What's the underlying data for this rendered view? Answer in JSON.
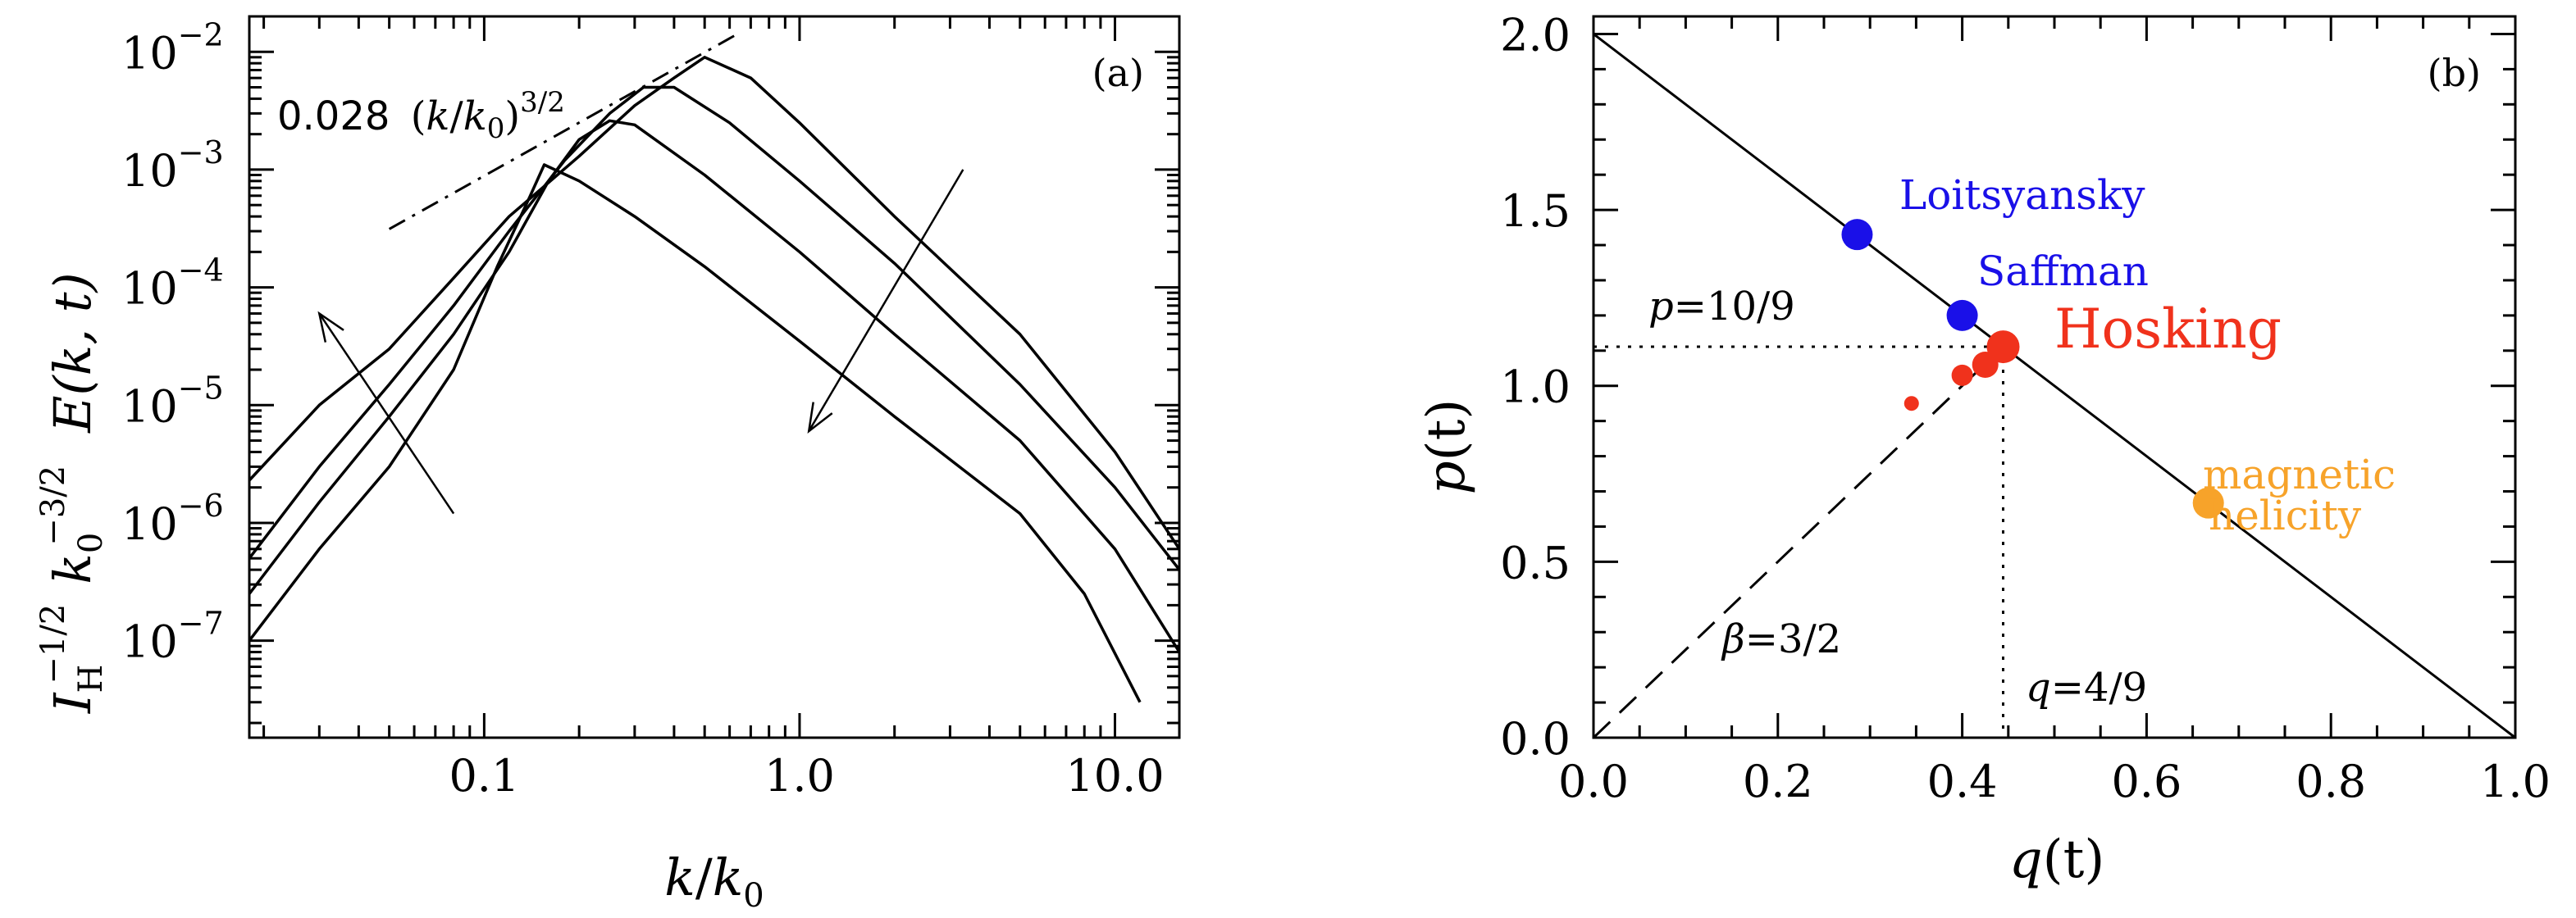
{
  "chart_data": [
    {
      "type": "line",
      "panel_label": "(a)",
      "x_scale": "log",
      "y_scale": "log",
      "xlim": [
        0.018,
        16
      ],
      "ylim": [
        1.5e-08,
        0.02
      ],
      "xlabel": "k/k0",
      "ylabel": "I_H^{-1/2} k_0^{-3/2} E(k,t)",
      "ylabel_parts": {
        "i": "I",
        "i_sub": "H",
        "i_sup": "−1/2",
        "k": "k",
        "k_sub": "0",
        "k_sup": "−3/2",
        "e": "E(k, t)"
      },
      "xlabel_parts": {
        "k": "k",
        "slash": "/",
        "k0": "k",
        "k0_sub": "0"
      },
      "x_ticks": [
        {
          "value": 0.1,
          "label": "0.1"
        },
        {
          "value": 1.0,
          "label": "1.0"
        },
        {
          "value": 10.0,
          "label": "10.0"
        }
      ],
      "y_ticks": [
        {
          "value": 1e-07,
          "mantissa": "10",
          "exp": "−7"
        },
        {
          "value": 1e-06,
          "mantissa": "10",
          "exp": "−6"
        },
        {
          "value": 1e-05,
          "mantissa": "10",
          "exp": "−5"
        },
        {
          "value": 0.0001,
          "mantissa": "10",
          "exp": "−4"
        },
        {
          "value": 0.001,
          "mantissa": "10",
          "exp": "−3"
        },
        {
          "value": 0.01,
          "mantissa": "10",
          "exp": "−2"
        }
      ],
      "series": [
        {
          "values": [
            [
              0.018,
              1e-07
            ],
            [
              0.03,
              6e-07
            ],
            [
              0.05,
              3e-06
            ],
            [
              0.08,
              2e-05
            ],
            [
              0.11,
              0.00015
            ],
            [
              0.14,
              0.0006
            ],
            [
              0.155,
              0.0011
            ],
            [
              0.2,
              0.0008
            ],
            [
              0.3,
              0.0004
            ],
            [
              0.5,
              0.00015
            ],
            [
              1.0,
              3.5e-05
            ],
            [
              2.0,
              8e-06
            ],
            [
              5.0,
              1.2e-06
            ],
            [
              8.0,
              2.5e-07
            ],
            [
              12.0,
              3e-08
            ]
          ]
        },
        {
          "values": [
            [
              0.018,
              2.5e-07
            ],
            [
              0.03,
              1.5e-06
            ],
            [
              0.05,
              8e-06
            ],
            [
              0.08,
              4e-05
            ],
            [
              0.12,
              0.0002
            ],
            [
              0.16,
              0.0008
            ],
            [
              0.2,
              0.0018
            ],
            [
              0.25,
              0.0026
            ],
            [
              0.3,
              0.0024
            ],
            [
              0.5,
              0.0009
            ],
            [
              1.0,
              0.0002
            ],
            [
              2.0,
              4e-05
            ],
            [
              5.0,
              5e-06
            ],
            [
              10.0,
              6e-07
            ],
            [
              16.0,
              8e-08
            ]
          ]
        },
        {
          "values": [
            [
              0.018,
              5e-07
            ],
            [
              0.03,
              3e-06
            ],
            [
              0.05,
              1.5e-05
            ],
            [
              0.08,
              7e-05
            ],
            [
              0.12,
              0.0003
            ],
            [
              0.18,
              0.0012
            ],
            [
              0.25,
              0.003
            ],
            [
              0.32,
              0.005
            ],
            [
              0.4,
              0.005
            ],
            [
              0.6,
              0.0025
            ],
            [
              1.0,
              0.0008
            ],
            [
              2.0,
              0.00016
            ],
            [
              5.0,
              1.5e-05
            ],
            [
              10.0,
              2e-06
            ],
            [
              16.0,
              4e-07
            ]
          ]
        },
        {
          "values": [
            [
              0.018,
              2.3e-06
            ],
            [
              0.03,
              1e-05
            ],
            [
              0.05,
              3e-05
            ],
            [
              0.08,
              0.00012
            ],
            [
              0.12,
              0.0004
            ],
            [
              0.2,
              0.0013
            ],
            [
              0.3,
              0.0035
            ],
            [
              0.4,
              0.006
            ],
            [
              0.5,
              0.009
            ],
            [
              0.7,
              0.006
            ],
            [
              1.0,
              0.0025
            ],
            [
              2.0,
              0.0004
            ],
            [
              5.0,
              4e-05
            ],
            [
              10.0,
              4e-06
            ],
            [
              16.0,
              6e-07
            ]
          ]
        }
      ],
      "fit_line": {
        "label": "0.028 (k/k0)^{3/2}",
        "label_parts": {
          "coef": "0.028",
          "k": "k",
          "k0": "k",
          "k0_sub": "0",
          "exp": "3/2"
        },
        "coefficient": 0.028,
        "exponent": 1.5,
        "x_range": [
          0.05,
          0.65
        ],
        "style": "dash-dot"
      },
      "arrows": [
        {
          "from": [
            0.08,
            1.2e-06
          ],
          "to": [
            0.03,
            6e-05
          ],
          "meaning": "left-up"
        },
        {
          "from": [
            3.3,
            0.001
          ],
          "to": [
            1.07,
            6e-06
          ],
          "meaning": "right-to-down"
        }
      ]
    },
    {
      "type": "scatter",
      "panel_label": "(b)",
      "xlim": [
        0.0,
        1.0
      ],
      "ylim": [
        0.0,
        2.05
      ],
      "xlabel": "q(t)",
      "ylabel": "p(t)",
      "xlabel_parts": {
        "sym": "q",
        "arg": "(t)"
      },
      "ylabel_parts": {
        "sym": "p",
        "arg": "(t)"
      },
      "x_ticks": [
        "0.0",
        "0.2",
        "0.4",
        "0.6",
        "0.8",
        "1.0"
      ],
      "y_ticks": [
        "0.0",
        "0.5",
        "1.0",
        "1.5",
        "2.0"
      ],
      "line": {
        "x": [
          0.0,
          1.0
        ],
        "y": [
          2.0,
          0.0
        ],
        "style": "solid"
      },
      "dashed_line": {
        "label": "β=3/2",
        "label_parts": {
          "sym": "β",
          "val": "=3/2"
        },
        "x": [
          0.0,
          0.4444
        ],
        "y": [
          0.0,
          1.1111
        ],
        "style": "dashed"
      },
      "guides": [
        {
          "label": "p=10/9",
          "label_parts": {
            "sym": "p",
            "val": "=10/9"
          },
          "value": 1.1111,
          "orientation": "horizontal"
        },
        {
          "label": "q=4/9",
          "label_parts": {
            "sym": "q",
            "val": "=4/9"
          },
          "value": 0.4444,
          "orientation": "vertical"
        }
      ],
      "points": [
        {
          "label": "Loitsyansky",
          "q": 0.286,
          "p": 1.43,
          "color": "#1a10e8"
        },
        {
          "label": "Saffman",
          "q": 0.4,
          "p": 1.2,
          "color": "#1a10e8"
        },
        {
          "label": "Hosking",
          "q": 0.4444,
          "p": 1.111,
          "color": "#f0321c"
        },
        {
          "label": "magnetic helicity",
          "label_lines": [
            "magnetic",
            "helicity"
          ],
          "q": 0.667,
          "p": 0.667,
          "color": "#f7a32a"
        }
      ],
      "extra_points": [
        {
          "q": 0.345,
          "p": 0.95,
          "color": "#f0321c"
        },
        {
          "q": 0.4,
          "p": 1.03,
          "color": "#f0321c"
        },
        {
          "q": 0.425,
          "p": 1.06,
          "color": "#f0321c"
        }
      ]
    }
  ]
}
